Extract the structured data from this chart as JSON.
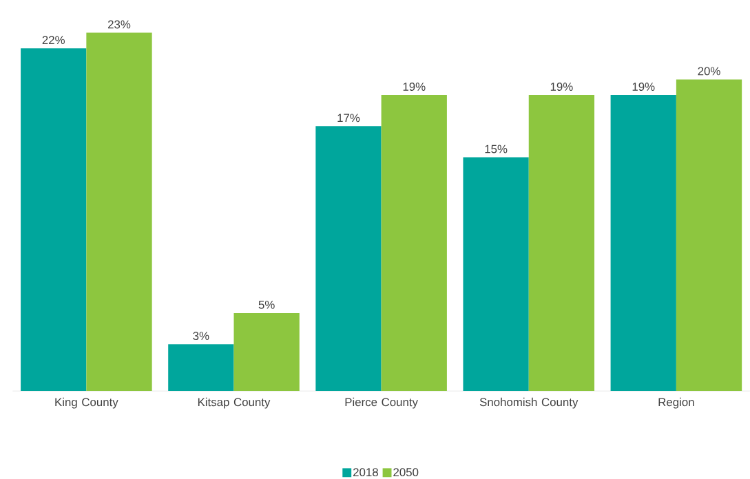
{
  "chart_data": {
    "type": "bar",
    "categories": [
      "King County",
      "Kitsap County",
      "Pierce County",
      "Snohomish County",
      "Region"
    ],
    "series": [
      {
        "name": "2018",
        "color": "#00a69c",
        "values": [
          22,
          3,
          17,
          15,
          19
        ],
        "value_labels": [
          "22%",
          "3%",
          "17%",
          "15%",
          "19%"
        ]
      },
      {
        "name": "2050",
        "color": "#8dc63f",
        "values": [
          23,
          5,
          19,
          19,
          20
        ],
        "value_labels": [
          "23%",
          "5%",
          "19%",
          "19%",
          "20%"
        ]
      }
    ],
    "legend": "bottom"
  }
}
